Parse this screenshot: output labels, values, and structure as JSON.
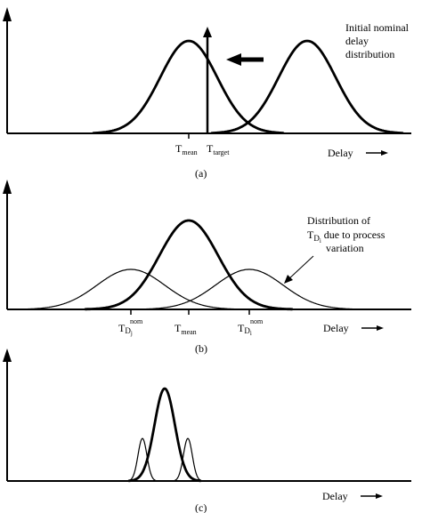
{
  "panels": [
    {
      "caption": "(a)",
      "x_axis_label": "Delay",
      "annotation": [
        "Initial nominal",
        "delay",
        "distribution"
      ],
      "markers": [
        {
          "main": "T",
          "sub": "mean"
        },
        {
          "main": "T",
          "sub": "target"
        }
      ]
    },
    {
      "caption": "(b)",
      "x_axis_label": "Delay",
      "annotation_line1": "Distribution of",
      "annotation_line2": {
        "main": "T",
        "sub": "D",
        "subsub": "i",
        "rest": " due to process"
      },
      "annotation_line3": "variation",
      "markers": [
        {
          "main": "T",
          "sub": "D",
          "subsub": "j",
          "sup": "nom"
        },
        {
          "main": "T",
          "sub": "mean"
        },
        {
          "main": "T",
          "sub": "D",
          "subsub": "i",
          "sup": "nom"
        }
      ]
    },
    {
      "caption": "(c)",
      "x_axis_label": "Delay"
    }
  ]
}
